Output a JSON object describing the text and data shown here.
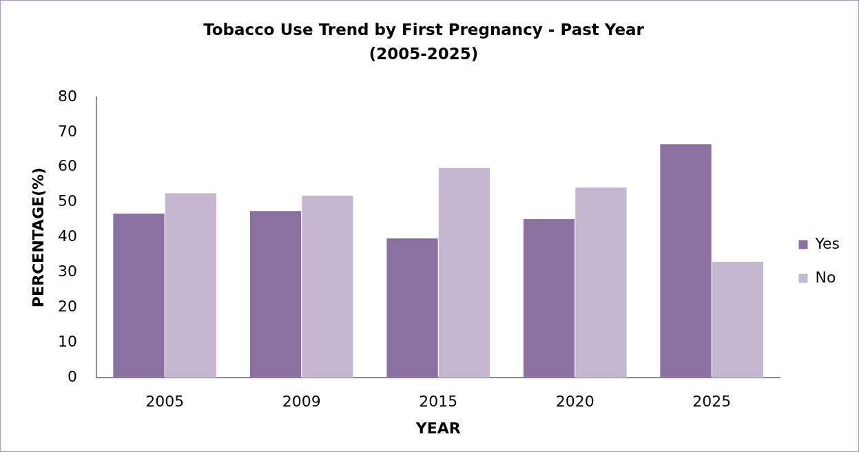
{
  "chart_data": {
    "type": "bar",
    "title": "Tobacco Use Trend by First Pregnancy - Past Year\n(2005-2025)",
    "xlabel": "YEAR",
    "ylabel": "PERCENTAGE(%)",
    "categories": [
      "2005",
      "2009",
      "2015",
      "2020",
      "2025"
    ],
    "series": [
      {
        "name": "Yes",
        "color": "#8b71a1",
        "values": [
          46.8,
          47.5,
          39.7,
          45.2,
          66.6
        ]
      },
      {
        "name": "No",
        "color": "#c5b7d0",
        "values": [
          52.6,
          51.9,
          59.8,
          54.2,
          33.0
        ]
      }
    ],
    "ylim": [
      0,
      80
    ],
    "yticks": [
      0,
      10,
      20,
      30,
      40,
      50,
      60,
      70,
      80
    ],
    "legend": "right"
  }
}
